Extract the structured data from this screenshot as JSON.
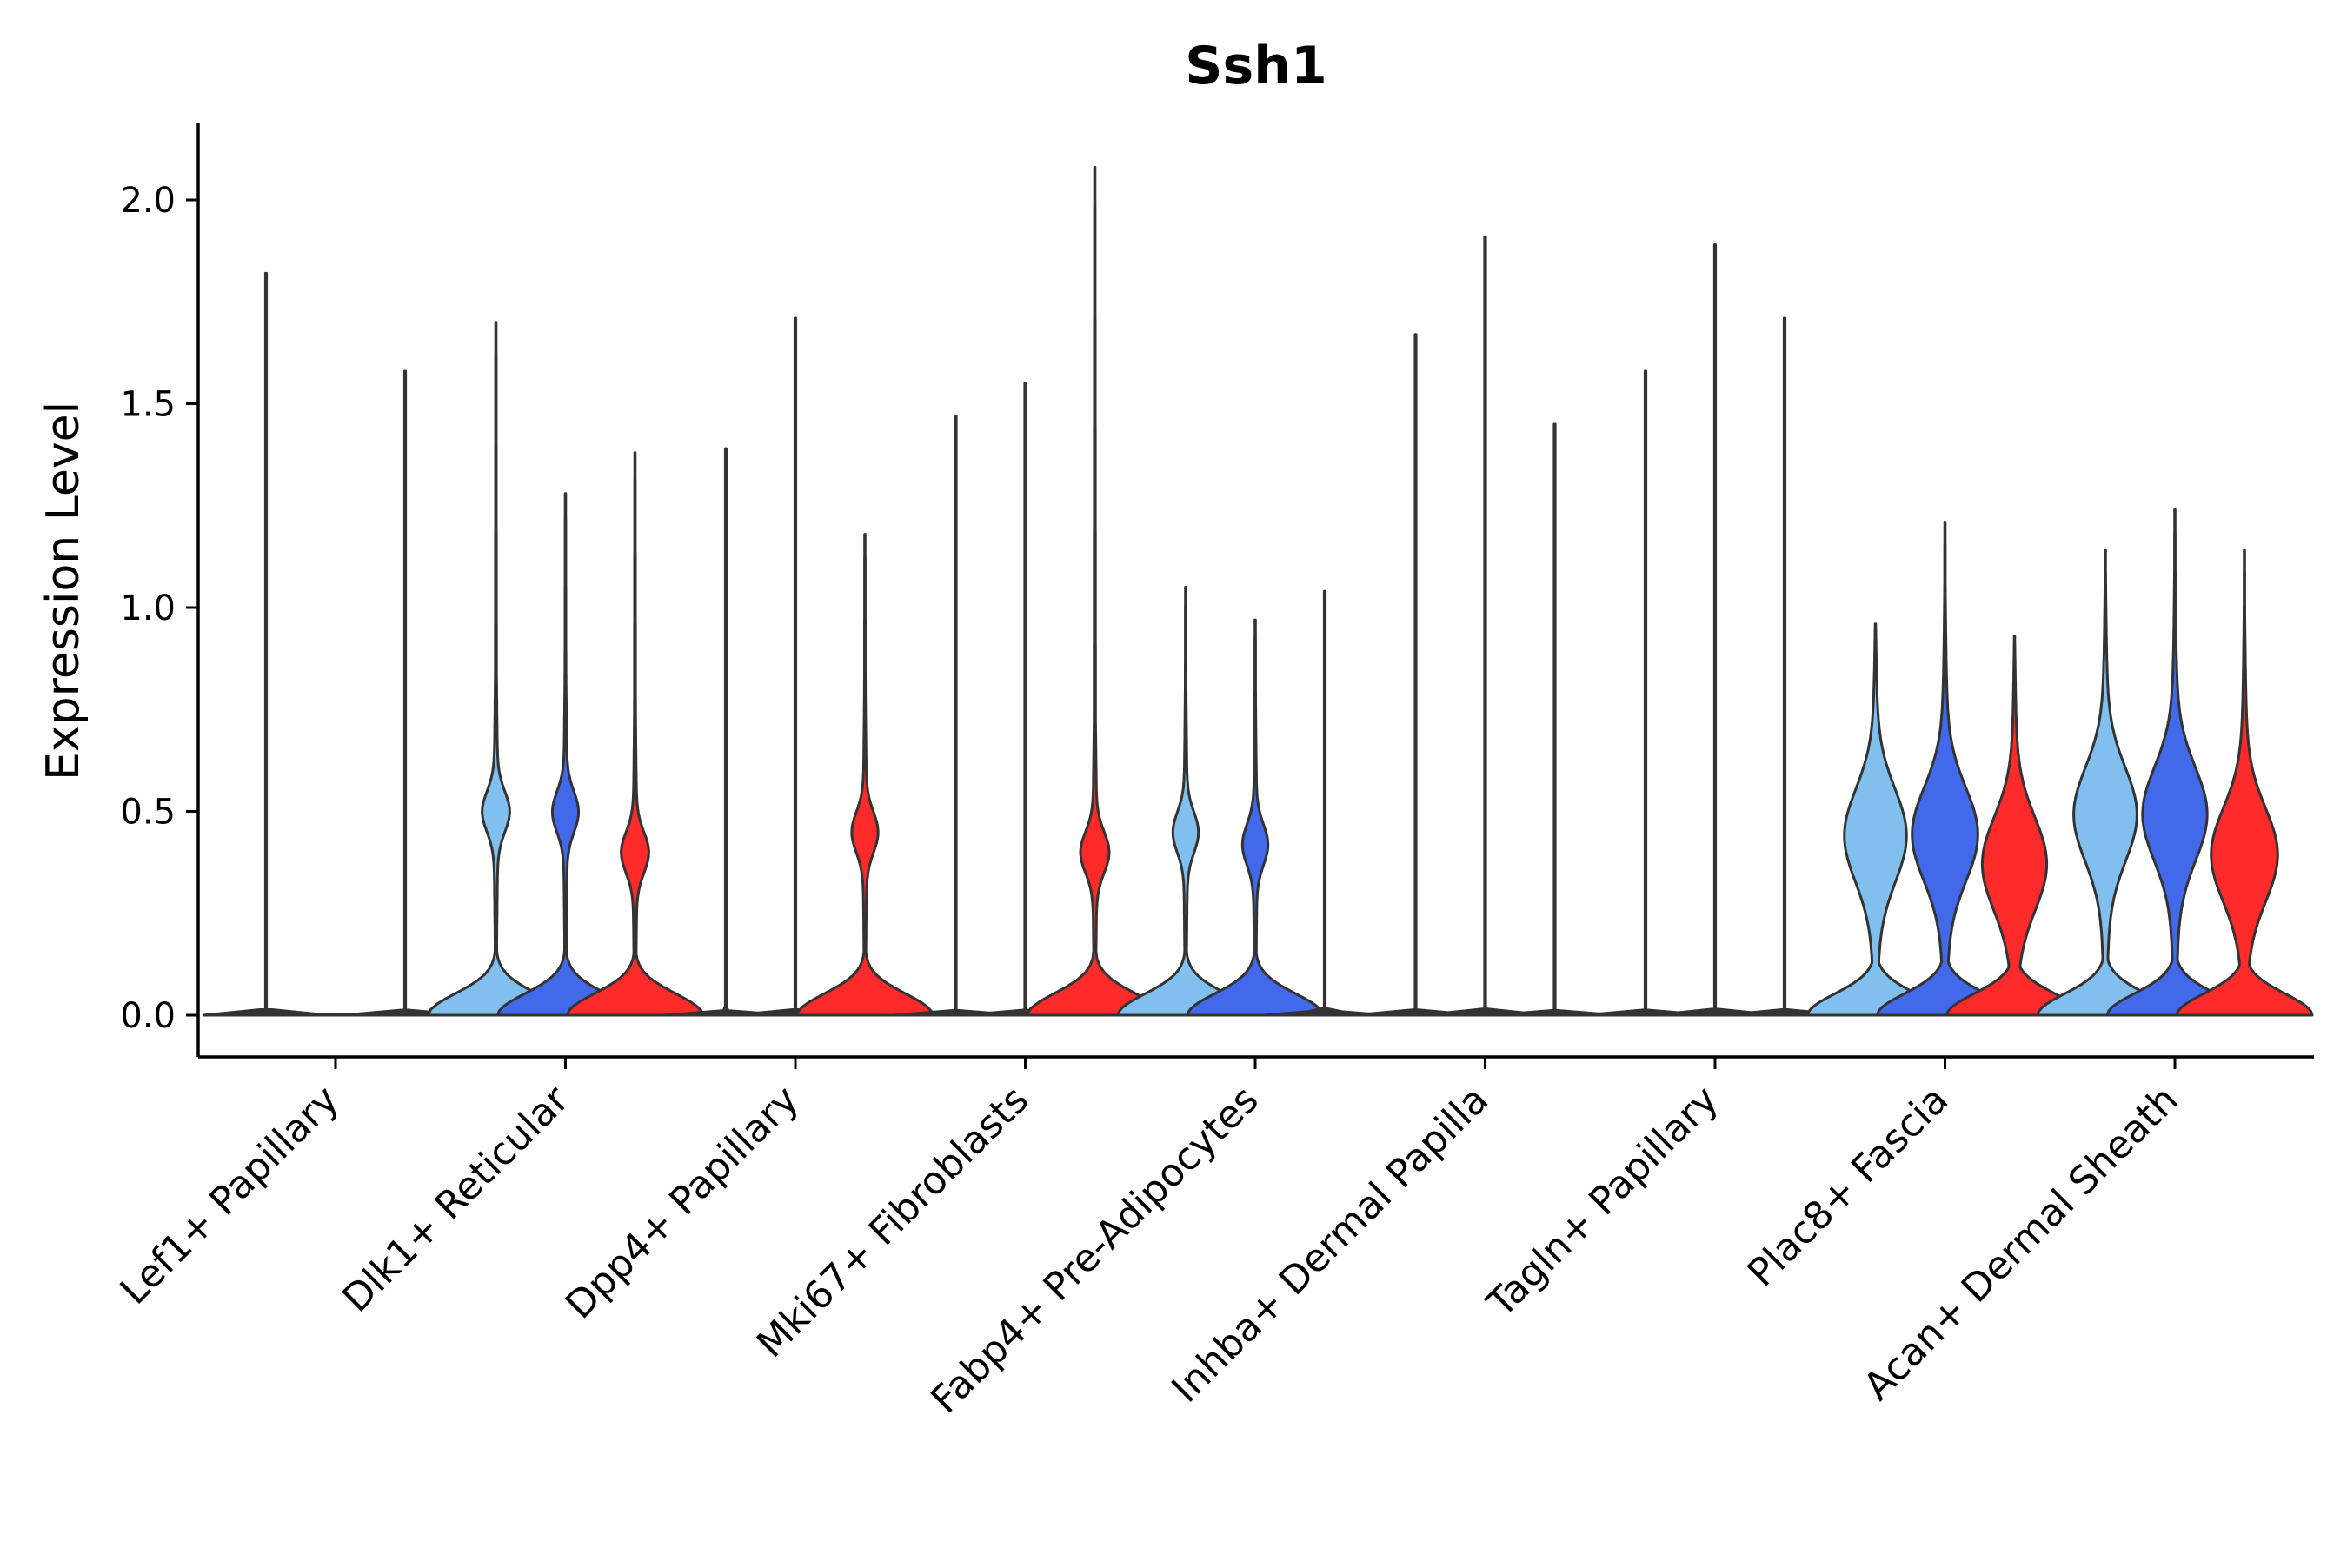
{
  "chart_data": {
    "type": "violin",
    "title": "Ssh1",
    "ylabel": "Expression Level",
    "xlabel": "",
    "ylim": [
      -0.1,
      2.2
    ],
    "yticks": [
      0.0,
      0.5,
      1.0,
      1.5,
      2.0
    ],
    "ytick_labels": [
      "0.0",
      "0.5",
      "1.0",
      "1.5",
      "2.0"
    ],
    "groups_per_category": 3,
    "group_colors": [
      "#80bfee",
      "#4169e9",
      "#ff2a2a"
    ],
    "categories": [
      "Lef1+ Papillary",
      "Dlk1+ Reticular",
      "Dpp4+ Papillary",
      "Mki67+ Fibroblasts",
      "Fabp4+ Pre-Adipocytes",
      "Inhba+ Dermal Papilla",
      "Tagln+ Papillary",
      "Plac8+ Fascia",
      "Acan+ Dermal Sheath"
    ],
    "violins": [
      {
        "category": 0,
        "group": 0,
        "max": 1.82,
        "shape": "flat"
      },
      {
        "category": 0,
        "group": 1,
        "max": 0.0,
        "shape": "flat"
      },
      {
        "category": 0,
        "group": 2,
        "max": 1.58,
        "shape": "flat"
      },
      {
        "category": 1,
        "group": 0,
        "max": 1.7,
        "shape": "bimodal",
        "mode": 0.5
      },
      {
        "category": 1,
        "group": 1,
        "max": 1.28,
        "shape": "bimodal",
        "mode": 0.5
      },
      {
        "category": 1,
        "group": 2,
        "max": 1.38,
        "shape": "bimodal",
        "mode": 0.4
      },
      {
        "category": 2,
        "group": 0,
        "max": 1.39,
        "shape": "flat"
      },
      {
        "category": 2,
        "group": 1,
        "max": 1.71,
        "shape": "flat"
      },
      {
        "category": 2,
        "group": 2,
        "max": 1.18,
        "shape": "bimodal",
        "mode": 0.45
      },
      {
        "category": 3,
        "group": 0,
        "max": 1.47,
        "shape": "flat"
      },
      {
        "category": 3,
        "group": 1,
        "max": 1.55,
        "shape": "flat"
      },
      {
        "category": 3,
        "group": 2,
        "max": 2.08,
        "shape": "bimodal",
        "mode": 0.4
      },
      {
        "category": 4,
        "group": 0,
        "max": 1.05,
        "shape": "bimodal",
        "mode": 0.45
      },
      {
        "category": 4,
        "group": 1,
        "max": 0.97,
        "shape": "bimodal",
        "mode": 0.42
      },
      {
        "category": 4,
        "group": 2,
        "max": 1.04,
        "shape": "flat"
      },
      {
        "category": 5,
        "group": 0,
        "max": 1.67,
        "shape": "flat"
      },
      {
        "category": 5,
        "group": 1,
        "max": 1.91,
        "shape": "flat"
      },
      {
        "category": 5,
        "group": 2,
        "max": 1.45,
        "shape": "flat"
      },
      {
        "category": 6,
        "group": 0,
        "max": 1.58,
        "shape": "flat"
      },
      {
        "category": 6,
        "group": 1,
        "max": 1.89,
        "shape": "flat"
      },
      {
        "category": 6,
        "group": 2,
        "max": 1.71,
        "shape": "flat"
      },
      {
        "category": 7,
        "group": 0,
        "max": 0.96,
        "shape": "wide",
        "mode": 0.45
      },
      {
        "category": 7,
        "group": 1,
        "max": 1.21,
        "shape": "wide",
        "mode": 0.45
      },
      {
        "category": 7,
        "group": 2,
        "max": 0.93,
        "shape": "wide",
        "mode": 0.38
      },
      {
        "category": 8,
        "group": 0,
        "max": 1.14,
        "shape": "wide",
        "mode": 0.5
      },
      {
        "category": 8,
        "group": 1,
        "max": 1.24,
        "shape": "wide",
        "mode": 0.5
      },
      {
        "category": 8,
        "group": 2,
        "max": 1.14,
        "shape": "wide",
        "mode": 0.4
      }
    ]
  }
}
